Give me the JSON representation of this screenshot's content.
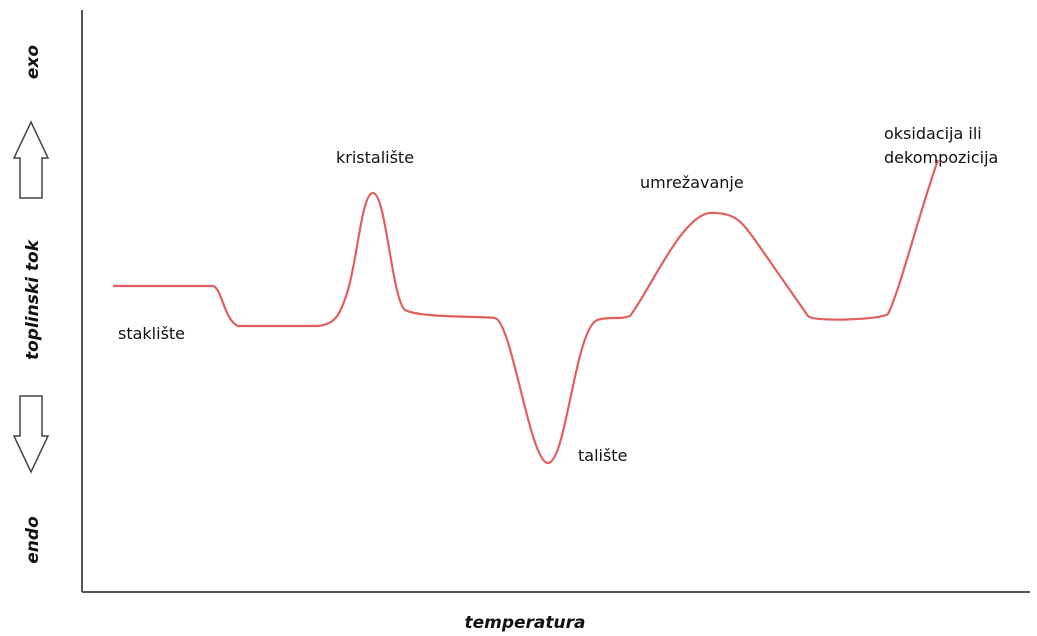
{
  "y_axis": {
    "top": "exo",
    "label": "toplinski tok",
    "bottom": "endo"
  },
  "x_axis": {
    "label": "temperatura"
  },
  "annotations": [
    {
      "lines": [
        "staklište"
      ]
    },
    {
      "lines": [
        "kristalište"
      ]
    },
    {
      "lines": [
        "talište"
      ]
    },
    {
      "lines": [
        "umrežavanje"
      ]
    },
    {
      "lines": [
        "oksidacija ili",
        "dekompozicija"
      ]
    }
  ]
}
